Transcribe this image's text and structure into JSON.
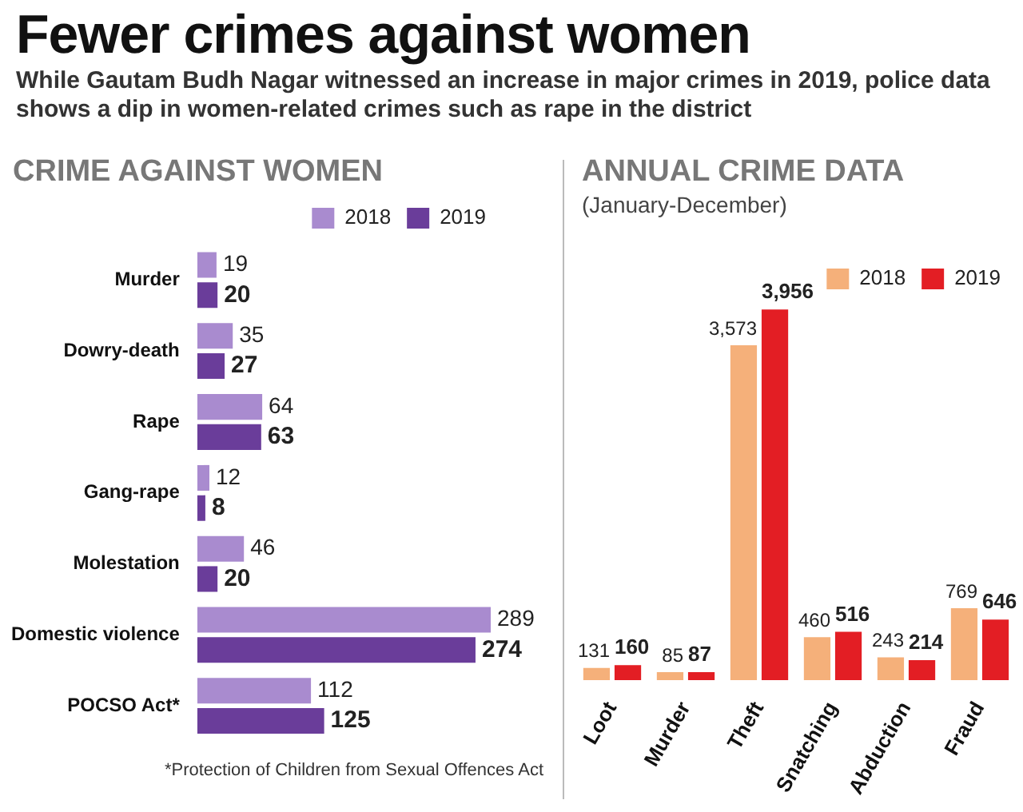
{
  "chart_data": [
    {
      "type": "other",
      "title": "Fewer crimes against women",
      "subtitle": "While Gautam Budh Nagar witnessed an increase in major crimes in 2019, police data shows a dip in women-related crimes such as rape in the district"
    },
    {
      "type": "bar",
      "orientation": "horizontal",
      "title": "CRIME AGAINST WOMEN",
      "categories": [
        "Murder",
        "Dowry-death",
        "Rape",
        "Gang-rape",
        "Molestation",
        "Domestic violence",
        "POCSO Act*"
      ],
      "series": [
        {
          "name": "2018",
          "color": "#a98bcf",
          "values": [
            19,
            35,
            64,
            12,
            46,
            289,
            112
          ]
        },
        {
          "name": "2019",
          "color": "#6a3d9a",
          "values": [
            20,
            27,
            63,
            8,
            20,
            274,
            125
          ]
        }
      ],
      "data_labels": true,
      "legend": "top right",
      "grid": false,
      "tick_labels": "y",
      "annotations": [
        "*Protection of Children from Sexual Offences Act"
      ]
    },
    {
      "type": "bar",
      "title": "ANNUAL CRIME DATA",
      "subtitle": "(January-December)",
      "categories": [
        "Loot",
        "Murder",
        "Theft",
        "Snatching",
        "Abduction",
        "Fraud"
      ],
      "series": [
        {
          "name": "2018",
          "color": "#f5b07a",
          "values": [
            131,
            85,
            3573,
            460,
            243,
            769
          ],
          "value_labels": [
            "131",
            "85",
            "3,573",
            "460",
            "243",
            "769"
          ]
        },
        {
          "name": "2019",
          "color": "#e31e24",
          "values": [
            160,
            87,
            3956,
            516,
            214,
            646
          ],
          "value_labels": [
            "160",
            "87",
            "3,956",
            "516",
            "214",
            "646"
          ]
        }
      ],
      "legend": "top right",
      "grid": false,
      "tick_labels": "x"
    }
  ]
}
